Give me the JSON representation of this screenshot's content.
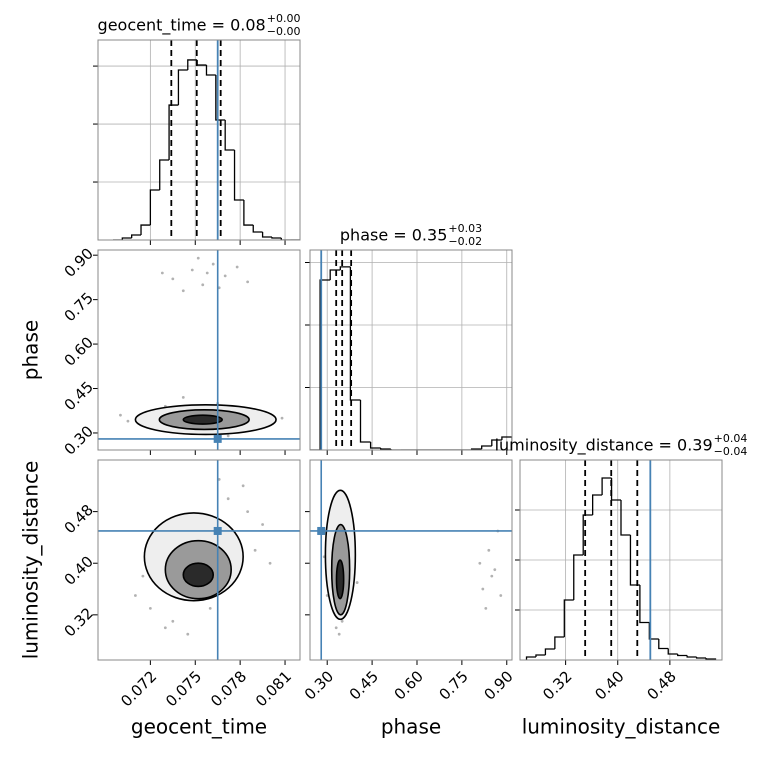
{
  "chart_data": [
    {
      "type": "histogram",
      "title": "geocent_time = 0.08",
      "title_sup": "+0.00",
      "title_sub": "−0.00",
      "bins": [
        0.0695,
        0.070125,
        0.07075,
        0.071375,
        0.072,
        0.072625,
        0.07325,
        0.073875,
        0.0745,
        0.075125,
        0.07575,
        0.076375,
        0.077,
        0.077625,
        0.07825,
        0.078875,
        0.0795,
        0.080125,
        0.08075,
        0.081375,
        0.082
      ],
      "counts": [
        0,
        17,
        43,
        129,
        431,
        690,
        1164,
        1466,
        1553,
        1509,
        1423,
        1035,
        776,
        345,
        129,
        69,
        26,
        17,
        0,
        0
      ],
      "color": "#000000",
      "quantiles": [
        0.0734,
        0.0751,
        0.0767
      ],
      "truth": 0.0765,
      "truth_color": "#4682b4",
      "xlim": [
        0.0685,
        0.082
      ],
      "ylim": [
        0,
        1725
      ],
      "xticks": [
        0.072,
        0.075,
        0.078,
        0.081
      ],
      "yticks": [
        500,
        1000,
        1500
      ],
      "grid": true
    },
    {
      "type": "scatter",
      "ylabel": "phase",
      "x": [
        0.0725,
        0.0738,
        0.0745,
        0.0752,
        0.076,
        0.0768,
        0.0775,
        0.0782,
        0.079,
        0.0715,
        0.0705,
        0.0798,
        0.073,
        0.0765,
        0.0748,
        0.0772,
        0.0742,
        0.0758,
        0.0808,
        0.07,
        0.0735,
        0.0748,
        0.0755,
        0.0762,
        0.077,
        0.0742,
        0.0778,
        0.0728,
        0.0785,
        0.0752,
        0.0766,
        0.0758
      ],
      "y": [
        0.33,
        0.36,
        0.31,
        0.37,
        0.32,
        0.35,
        0.38,
        0.33,
        0.36,
        0.35,
        0.34,
        0.34,
        0.39,
        0.4,
        0.3,
        0.29,
        0.42,
        0.345,
        0.35,
        0.36,
        0.82,
        0.85,
        0.8,
        0.87,
        0.83,
        0.78,
        0.86,
        0.84,
        0.81,
        0.89,
        0.79,
        0.84
      ],
      "color": "#000000",
      "contours": [
        {
          "cx": 0.0757,
          "cy": 0.345,
          "rx": 0.0047,
          "ry": 0.05,
          "fill": "#eeeeee"
        },
        {
          "cx": 0.0756,
          "cy": 0.345,
          "rx": 0.003,
          "ry": 0.033,
          "fill": "#9a9a9a"
        },
        {
          "cx": 0.0755,
          "cy": 0.345,
          "rx": 0.0013,
          "ry": 0.015,
          "fill": "#2a2a2a"
        }
      ],
      "truth": [
        0.0765,
        0.28
      ],
      "truth_color": "#4682b4",
      "xlim": [
        0.0685,
        0.082
      ],
      "ylim": [
        0.2425,
        0.9175
      ],
      "xticks": [
        0.072,
        0.075,
        0.078,
        0.081
      ],
      "yticks": [
        {
          "value": 0.3,
          "label": "0.30"
        },
        0.45,
        {
          "value": 0.6,
          "label": "0.60"
        },
        0.75,
        {
          "value": 0.9,
          "label": "0.90"
        }
      ],
      "grid": false
    },
    {
      "type": "histogram",
      "title": "phase = 0.35",
      "title_sup": "+0.03",
      "title_sub": "−0.02",
      "bins": [
        0.2425,
        0.27625,
        0.31,
        0.34375,
        0.3775,
        0.41125,
        0.445,
        0.47875,
        0.5125,
        0.54625,
        0.58,
        0.61375,
        0.6475,
        0.68125,
        0.715,
        0.74875,
        0.7825,
        0.81625,
        0.85,
        0.88375,
        0.9175
      ],
      "counts": [
        0,
        2720,
        2880,
        2930,
        800,
        128,
        32,
        16,
        0,
        0,
        0,
        0,
        0,
        0,
        0,
        0,
        16,
        64,
        160,
        208
      ],
      "color": "#000000",
      "quantiles": [
        0.33,
        0.35,
        0.38
      ],
      "truth": 0.28,
      "truth_color": "#4682b4",
      "xlim": [
        0.2425,
        0.9175
      ],
      "ylim": [
        0,
        3200
      ],
      "xticks": [
        0.3,
        0.45,
        0.6,
        0.75,
        0.9
      ],
      "yticks": [
        1000,
        2000,
        3000
      ],
      "grid": true
    },
    {
      "type": "scatter",
      "xlabel": "geocent_time",
      "ylabel": "luminosity_distance",
      "x": [
        0.072,
        0.0728,
        0.0735,
        0.074,
        0.0748,
        0.0752,
        0.0758,
        0.0762,
        0.0768,
        0.0772,
        0.0778,
        0.0785,
        0.079,
        0.0715,
        0.073,
        0.0745,
        0.076,
        0.0775,
        0.0795,
        0.071,
        0.0782,
        0.0766,
        0.0738,
        0.08,
        0.0725
      ],
      "y": [
        0.33,
        0.36,
        0.31,
        0.4,
        0.35,
        0.44,
        0.38,
        0.47,
        0.41,
        0.5,
        0.44,
        0.48,
        0.42,
        0.38,
        0.3,
        0.29,
        0.33,
        0.37,
        0.46,
        0.35,
        0.52,
        0.53,
        0.45,
        0.4,
        0.42
      ],
      "color": "#000000",
      "contours": [
        {
          "cx": 0.0749,
          "cy": 0.41,
          "rx": 0.0033,
          "ry": 0.068,
          "fill": "#eeeeee"
        },
        {
          "cx": 0.0752,
          "cy": 0.39,
          "rx": 0.0022,
          "ry": 0.045,
          "fill": "#9a9a9a"
        },
        {
          "cx": 0.0752,
          "cy": 0.382,
          "rx": 0.001,
          "ry": 0.018,
          "fill": "#2a2a2a"
        }
      ],
      "truth": [
        0.0765,
        0.45
      ],
      "truth_color": "#4682b4",
      "xlim": [
        0.0685,
        0.082
      ],
      "ylim": [
        0.25,
        0.56
      ],
      "xticks": [
        0.072,
        0.075,
        0.078,
        0.081
      ],
      "yticks": [
        0.32,
        {
          "value": 0.4,
          "label": "0.40"
        },
        0.48
      ],
      "grid": false
    },
    {
      "type": "scatter",
      "xlabel": "phase",
      "x": [
        0.3,
        0.32,
        0.33,
        0.34,
        0.35,
        0.36,
        0.37,
        0.38,
        0.31,
        0.34,
        0.36,
        0.39,
        0.33,
        0.35,
        0.4,
        0.29,
        0.82,
        0.84,
        0.86,
        0.83,
        0.87,
        0.85,
        0.81,
        0.88
      ],
      "y": [
        0.35,
        0.42,
        0.3,
        0.46,
        0.38,
        0.33,
        0.41,
        0.36,
        0.39,
        0.29,
        0.49,
        0.4,
        0.45,
        0.31,
        0.37,
        0.41,
        0.36,
        0.42,
        0.39,
        0.33,
        0.45,
        0.38,
        0.4,
        0.35
      ],
      "color": "#000000",
      "contours": [
        {
          "cx": 0.344,
          "cy": 0.413,
          "rx": 0.05,
          "ry": 0.1,
          "fill": "#eeeeee"
        },
        {
          "cx": 0.345,
          "cy": 0.39,
          "rx": 0.03,
          "ry": 0.07,
          "fill": "#9a9a9a"
        },
        {
          "cx": 0.343,
          "cy": 0.375,
          "rx": 0.012,
          "ry": 0.03,
          "fill": "#2a2a2a"
        }
      ],
      "truth": [
        0.28,
        0.45
      ],
      "truth_color": "#4682b4",
      "xlim": [
        0.2425,
        0.9175
      ],
      "ylim": [
        0.25,
        0.56
      ],
      "xticks": [
        {
          "value": 0.3,
          "label": "0.30"
        },
        0.45,
        {
          "value": 0.6,
          "label": "0.60"
        },
        0.75,
        {
          "value": 0.9,
          "label": "0.90"
        }
      ],
      "yticks": [
        0.32,
        0.4,
        0.48
      ],
      "grid": false
    },
    {
      "type": "histogram",
      "xlabel": "luminosity_distance",
      "title": "luminosity_distance = 0.39",
      "title_sup": "+0.04",
      "title_sub": "−0.04",
      "bins": [
        0.26,
        0.2745,
        0.289,
        0.3035,
        0.318,
        0.3325,
        0.347,
        0.3615,
        0.376,
        0.3905,
        0.405,
        0.4195,
        0.434,
        0.4485,
        0.463,
        0.4775,
        0.492,
        0.5065,
        0.521,
        0.5355,
        0.55
      ],
      "counts": [
        60,
        100,
        220,
        460,
        1200,
        2100,
        2900,
        3300,
        3640,
        3200,
        2500,
        1500,
        750,
        420,
        230,
        120,
        90,
        60,
        40,
        20
      ],
      "color": "#000000",
      "quantiles": [
        0.35,
        0.39,
        0.43
      ],
      "truth": 0.45,
      "truth_color": "#4682b4",
      "xlim": [
        0.25,
        0.56
      ],
      "ylim": [
        0,
        4000
      ],
      "xticks": [
        0.32,
        {
          "value": 0.4,
          "label": "0.40"
        },
        0.48
      ],
      "yticks": [
        1000,
        2000,
        3000
      ],
      "grid": true
    }
  ]
}
